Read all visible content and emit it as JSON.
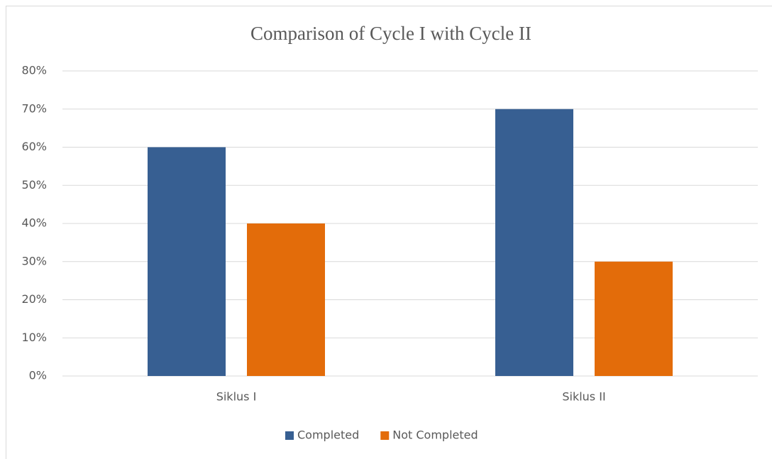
{
  "chart_data": {
    "type": "bar",
    "title": "Comparison of Cycle I with Cycle II",
    "categories": [
      "Siklus I",
      "Siklus II"
    ],
    "series": [
      {
        "name": "Completed",
        "color": "#375f92",
        "values": [
          60,
          70
        ]
      },
      {
        "name": "Not Completed",
        "color": "#e36c0a",
        "values": [
          40,
          30
        ]
      }
    ],
    "ylim": [
      0,
      80
    ],
    "yticks": [
      {
        "value": 0,
        "label": "0%"
      },
      {
        "value": 10,
        "label": "10%"
      },
      {
        "value": 20,
        "label": "20%"
      },
      {
        "value": 30,
        "label": "30%"
      },
      {
        "value": 40,
        "label": "40%"
      },
      {
        "value": 50,
        "label": "50%"
      },
      {
        "value": 60,
        "label": "60%"
      },
      {
        "value": 70,
        "label": "70%"
      },
      {
        "value": 80,
        "label": "80%"
      }
    ],
    "grid": true,
    "legend": "bottom"
  }
}
